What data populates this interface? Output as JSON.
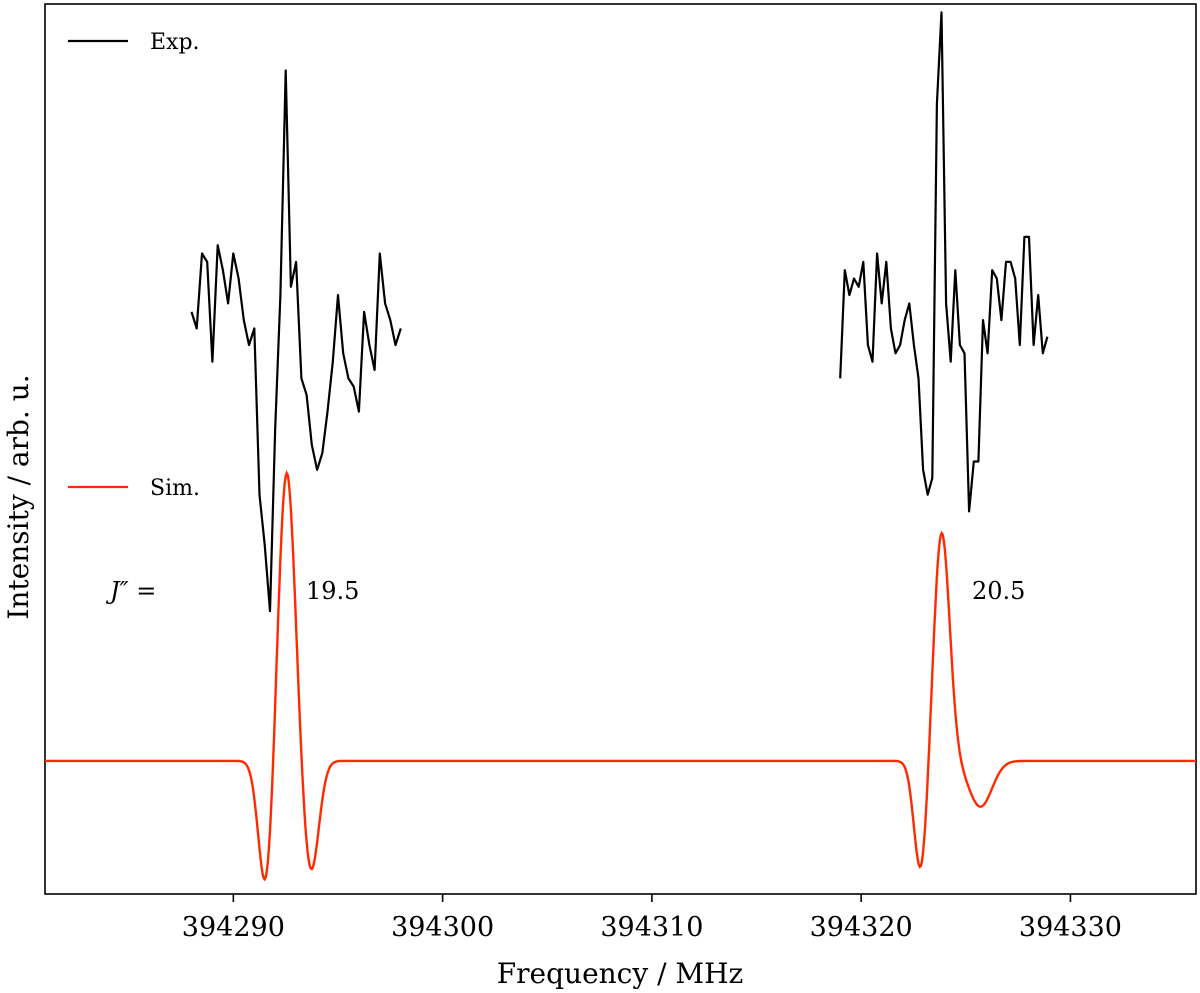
{
  "chart_data": {
    "type": "line",
    "title": "",
    "xlabel": "Frequency / MHz",
    "ylabel": "Intensity / arb. u.",
    "xlim": [
      394281,
      394336
    ],
    "ylim": [
      -1.6,
      9.1
    ],
    "x_ticks": [
      394290,
      394300,
      394310,
      394320,
      394330
    ],
    "x_tick_labels": [
      "394290",
      "394300",
      "394310",
      "394320",
      "394330"
    ],
    "y_ticks": [],
    "grid": false,
    "legend": [
      {
        "name": "Exp.",
        "color": "#000000",
        "placement": "top-left"
      },
      {
        "name": "Sim.",
        "color": "#ff2a00",
        "placement": "middle-left"
      }
    ],
    "annotations": [
      {
        "text": "J″ =",
        "x": 394285.5,
        "y": 1.9
      },
      {
        "text": "19.5",
        "x": 394296.2,
        "y": 1.9
      },
      {
        "text": "20.5",
        "x": 394327.9,
        "y": 1.9
      }
    ],
    "series": [
      {
        "name": "Exp.",
        "color": "#000000",
        "segments": [
          {
            "x": [
              394288.0,
              394288.25,
              394288.5,
              394288.75,
              394289.0,
              394289.25,
              394289.5,
              394289.75,
              394290.0,
              394290.25,
              394290.5,
              394290.75,
              394291.0,
              394291.25,
              394291.5,
              394291.75,
              394292.0,
              394292.25,
              394292.5,
              394292.75,
              394293.0,
              394293.25,
              394293.5,
              394293.75,
              394294.0,
              394294.25,
              394294.5,
              394294.75,
              394295.0,
              394295.25,
              394295.5,
              394295.75,
              394296.0,
              394296.25,
              394296.5,
              394296.75,
              394297.0,
              394297.25,
              394297.5,
              394297.75,
              394298.0
            ],
            "y": [
              5.4,
              5.2,
              6.1,
              6.0,
              4.8,
              6.2,
              5.9,
              5.5,
              6.1,
              5.8,
              5.3,
              5.0,
              5.2,
              3.2,
              2.6,
              1.8,
              4.0,
              5.6,
              8.3,
              5.7,
              6.0,
              4.6,
              4.4,
              3.8,
              3.5,
              3.7,
              4.2,
              4.8,
              5.6,
              4.9,
              4.6,
              4.5,
              4.2,
              5.4,
              5.0,
              4.7,
              6.1,
              5.5,
              5.3,
              5.0,
              5.2
            ],
            "note": "first group (J''=19.5), sampled trace"
          }
        ]
      },
      {
        "name": "Sim.",
        "color": "#ff2a00",
        "peaks": [
          {
            "center": 394292.5,
            "label": "19.5",
            "max": 2.9,
            "min": -1.3
          },
          {
            "center": 394324.7,
            "label": "20.5",
            "max": 2.2,
            "min": -1.0
          }
        ],
        "baseline": 0.0
      }
    ]
  }
}
